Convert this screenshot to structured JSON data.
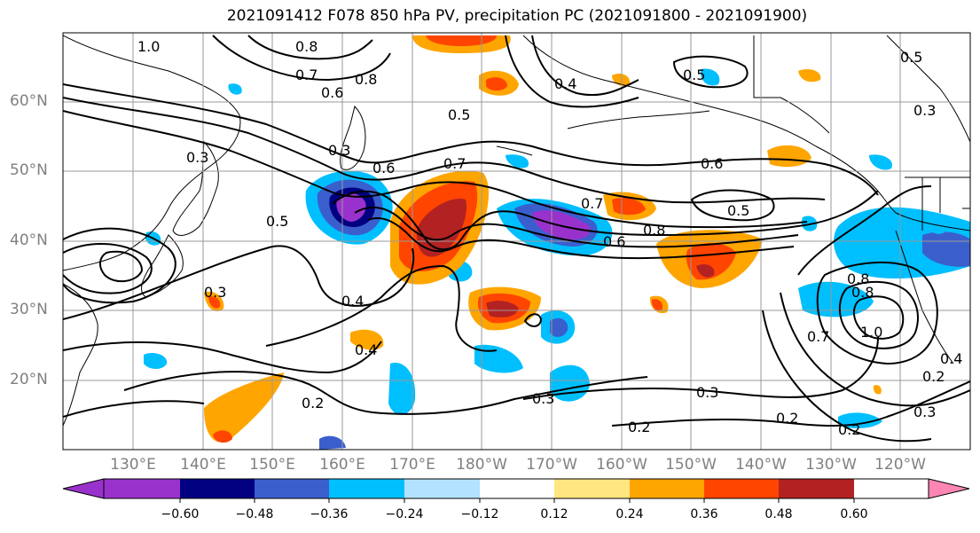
{
  "title": "2021091412 F078 850 hPa PV, precipitation PC (2021091800 - 2021091900)",
  "lat_labels": [
    "60°N",
    "50°N",
    "40°N",
    "30°N",
    "20°N"
  ],
  "lon_labels": [
    "130°E",
    "140°E",
    "150°E",
    "160°E",
    "170°E",
    "180°W",
    "170°W",
    "160°W",
    "150°W",
    "140°W",
    "130°W",
    "120°W"
  ],
  "colorbar": {
    "ticks": [
      "−0.60",
      "−0.48",
      "−0.36",
      "−0.24",
      "−0.12",
      "0.12",
      "0.24",
      "0.36",
      "0.48",
      "0.60"
    ],
    "colors": [
      "#9932cc",
      "#000080",
      "#3a5fcd",
      "#00bfff",
      "#b2e2ff",
      "#ffffff",
      "#ffe680",
      "#ffa500",
      "#ff4500",
      "#b22222",
      "#ff85b3"
    ]
  },
  "contour_labels": [
    "1.0",
    "0.8",
    "0.7",
    "0.6",
    "0.8",
    "0.5",
    "0.4",
    "0.5",
    "0.6",
    "0.3",
    "0.3",
    "0.6",
    "0.7",
    "0.5",
    "0.7",
    "0.8",
    "0.6",
    "0.5",
    "0.8",
    "0.5",
    "0.4",
    "0.3",
    "0.3",
    "0.4",
    "0.8",
    "1.0",
    "0.7",
    "0.3",
    "0.2",
    "0.2",
    "0.3",
    "0.2",
    "0.2",
    "0.3",
    "0.2",
    "0.4"
  ]
}
